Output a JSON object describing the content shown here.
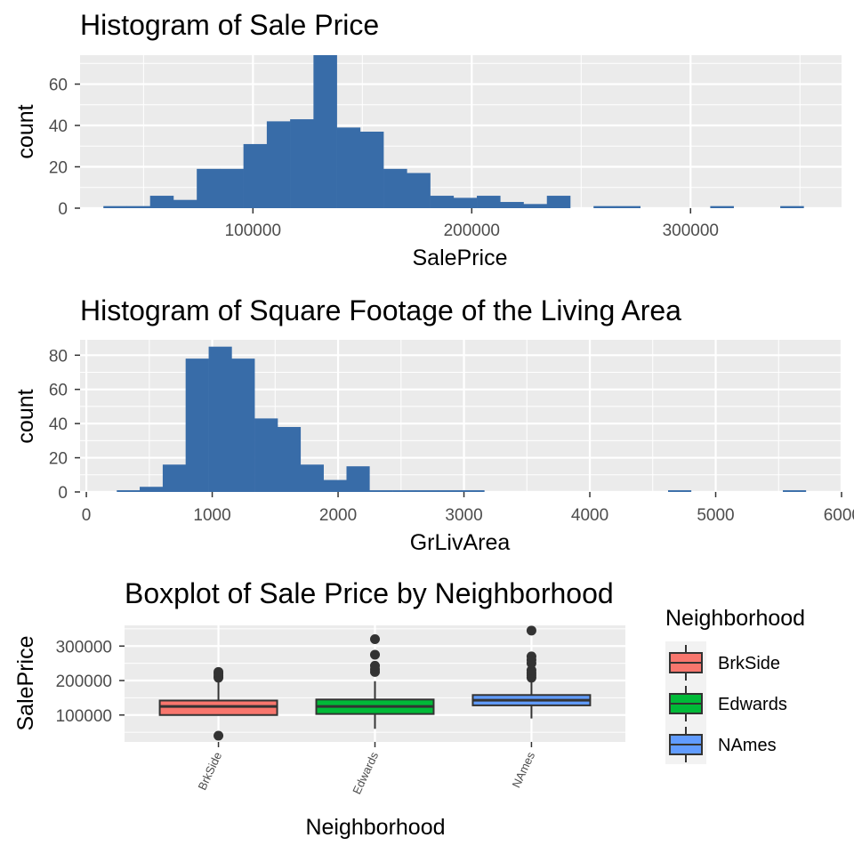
{
  "chart_data": [
    {
      "type": "bar",
      "title": "Histogram of Sale Price",
      "xlabel": "SalePrice",
      "ylabel": "count",
      "xlim": [
        21000,
        369000
      ],
      "ylim": [
        0,
        74
      ],
      "x_ticks": [
        100000,
        200000,
        300000
      ],
      "x_tick_labels": [
        "100000",
        "200000",
        "300000"
      ],
      "y_ticks": [
        0,
        20,
        40,
        60
      ],
      "y_tick_labels": [
        "0",
        "20",
        "40",
        "60"
      ],
      "fill_color": "#386CA8",
      "panel_color": "#EBEBEB",
      "bin_width": 10667,
      "bin_centers": [
        37000,
        47667,
        58333,
        69000,
        79667,
        90333,
        101000,
        111667,
        122333,
        133000,
        143667,
        154333,
        165000,
        175667,
        186333,
        197000,
        207667,
        218333,
        229000,
        239667,
        250333,
        261000,
        271667,
        282333,
        293000,
        303667,
        314333,
        325000,
        335667,
        346333
      ],
      "values": [
        1,
        1,
        6,
        4,
        19,
        19,
        31,
        42,
        43,
        74,
        39,
        37,
        19,
        17,
        6,
        5,
        6,
        3,
        2,
        6,
        0,
        1,
        1,
        0,
        0,
        0,
        1,
        0,
        0,
        1
      ]
    },
    {
      "type": "bar",
      "title": "Histogram of Square Footage of the Living Area",
      "xlabel": "GrLivArea",
      "ylabel": "count",
      "xlim": [
        -50,
        6000
      ],
      "ylim": [
        0,
        89
      ],
      "x_ticks": [
        0,
        1000,
        2000,
        3000,
        4000,
        5000,
        6000
      ],
      "x_tick_labels": [
        "0",
        "1000",
        "2000",
        "3000",
        "4000",
        "5000",
        "6000"
      ],
      "y_ticks": [
        0,
        20,
        40,
        60,
        80
      ],
      "y_tick_labels": [
        "0",
        "20",
        "40",
        "60",
        "80"
      ],
      "fill_color": "#386CA8",
      "panel_color": "#EBEBEB",
      "bin_width": 182.5,
      "bin_centers": [
        333,
        515,
        698,
        880,
        1063,
        1245,
        1428,
        1610,
        1793,
        1975,
        2158,
        2340,
        2523,
        2705,
        2888,
        3070,
        3253,
        3435,
        3618,
        3800,
        3983,
        4165,
        4348,
        4530,
        4713,
        4895,
        5078,
        5260,
        5443,
        5625
      ],
      "values": [
        1,
        3,
        16,
        78,
        85,
        78,
        43,
        38,
        16,
        7,
        15,
        1,
        1,
        1,
        1,
        1,
        0,
        0,
        0,
        0,
        0,
        0,
        0,
        0,
        1,
        0,
        0,
        0,
        0,
        1
      ]
    },
    {
      "type": "boxplot",
      "title": "Boxplot of Sale Price by Neighborhood",
      "xlabel": "Neighborhood",
      "ylabel": "SalePrice",
      "ylim": [
        22000,
        360000
      ],
      "y_ticks": [
        100000,
        200000,
        300000
      ],
      "y_tick_labels": [
        "100000",
        "200000",
        "300000"
      ],
      "categories": [
        "BrkSide",
        "Edwards",
        "NAmes"
      ],
      "legend_title": "Neighborhood",
      "legend_position": "right",
      "series": [
        {
          "name": "BrkSide",
          "color": "#F8766D",
          "min": 100000,
          "q1": 100000,
          "median": 125000,
          "q3": 142000,
          "max": 196000,
          "outliers": [
            40000,
            208000,
            213000,
            220000,
            225000
          ]
        },
        {
          "name": "Edwards",
          "color": "#00BA38",
          "min": 60000,
          "q1": 103000,
          "median": 125000,
          "q3": 145000,
          "max": 198000,
          "outliers": [
            225000,
            233000,
            243000,
            275000,
            320000
          ]
        },
        {
          "name": "NAmes",
          "color": "#619CFF",
          "min": 90000,
          "q1": 128000,
          "median": 143000,
          "q3": 158000,
          "max": 200000,
          "outliers": [
            208000,
            215000,
            222000,
            230000,
            250000,
            260000,
            270000,
            345000
          ]
        }
      ]
    }
  ]
}
